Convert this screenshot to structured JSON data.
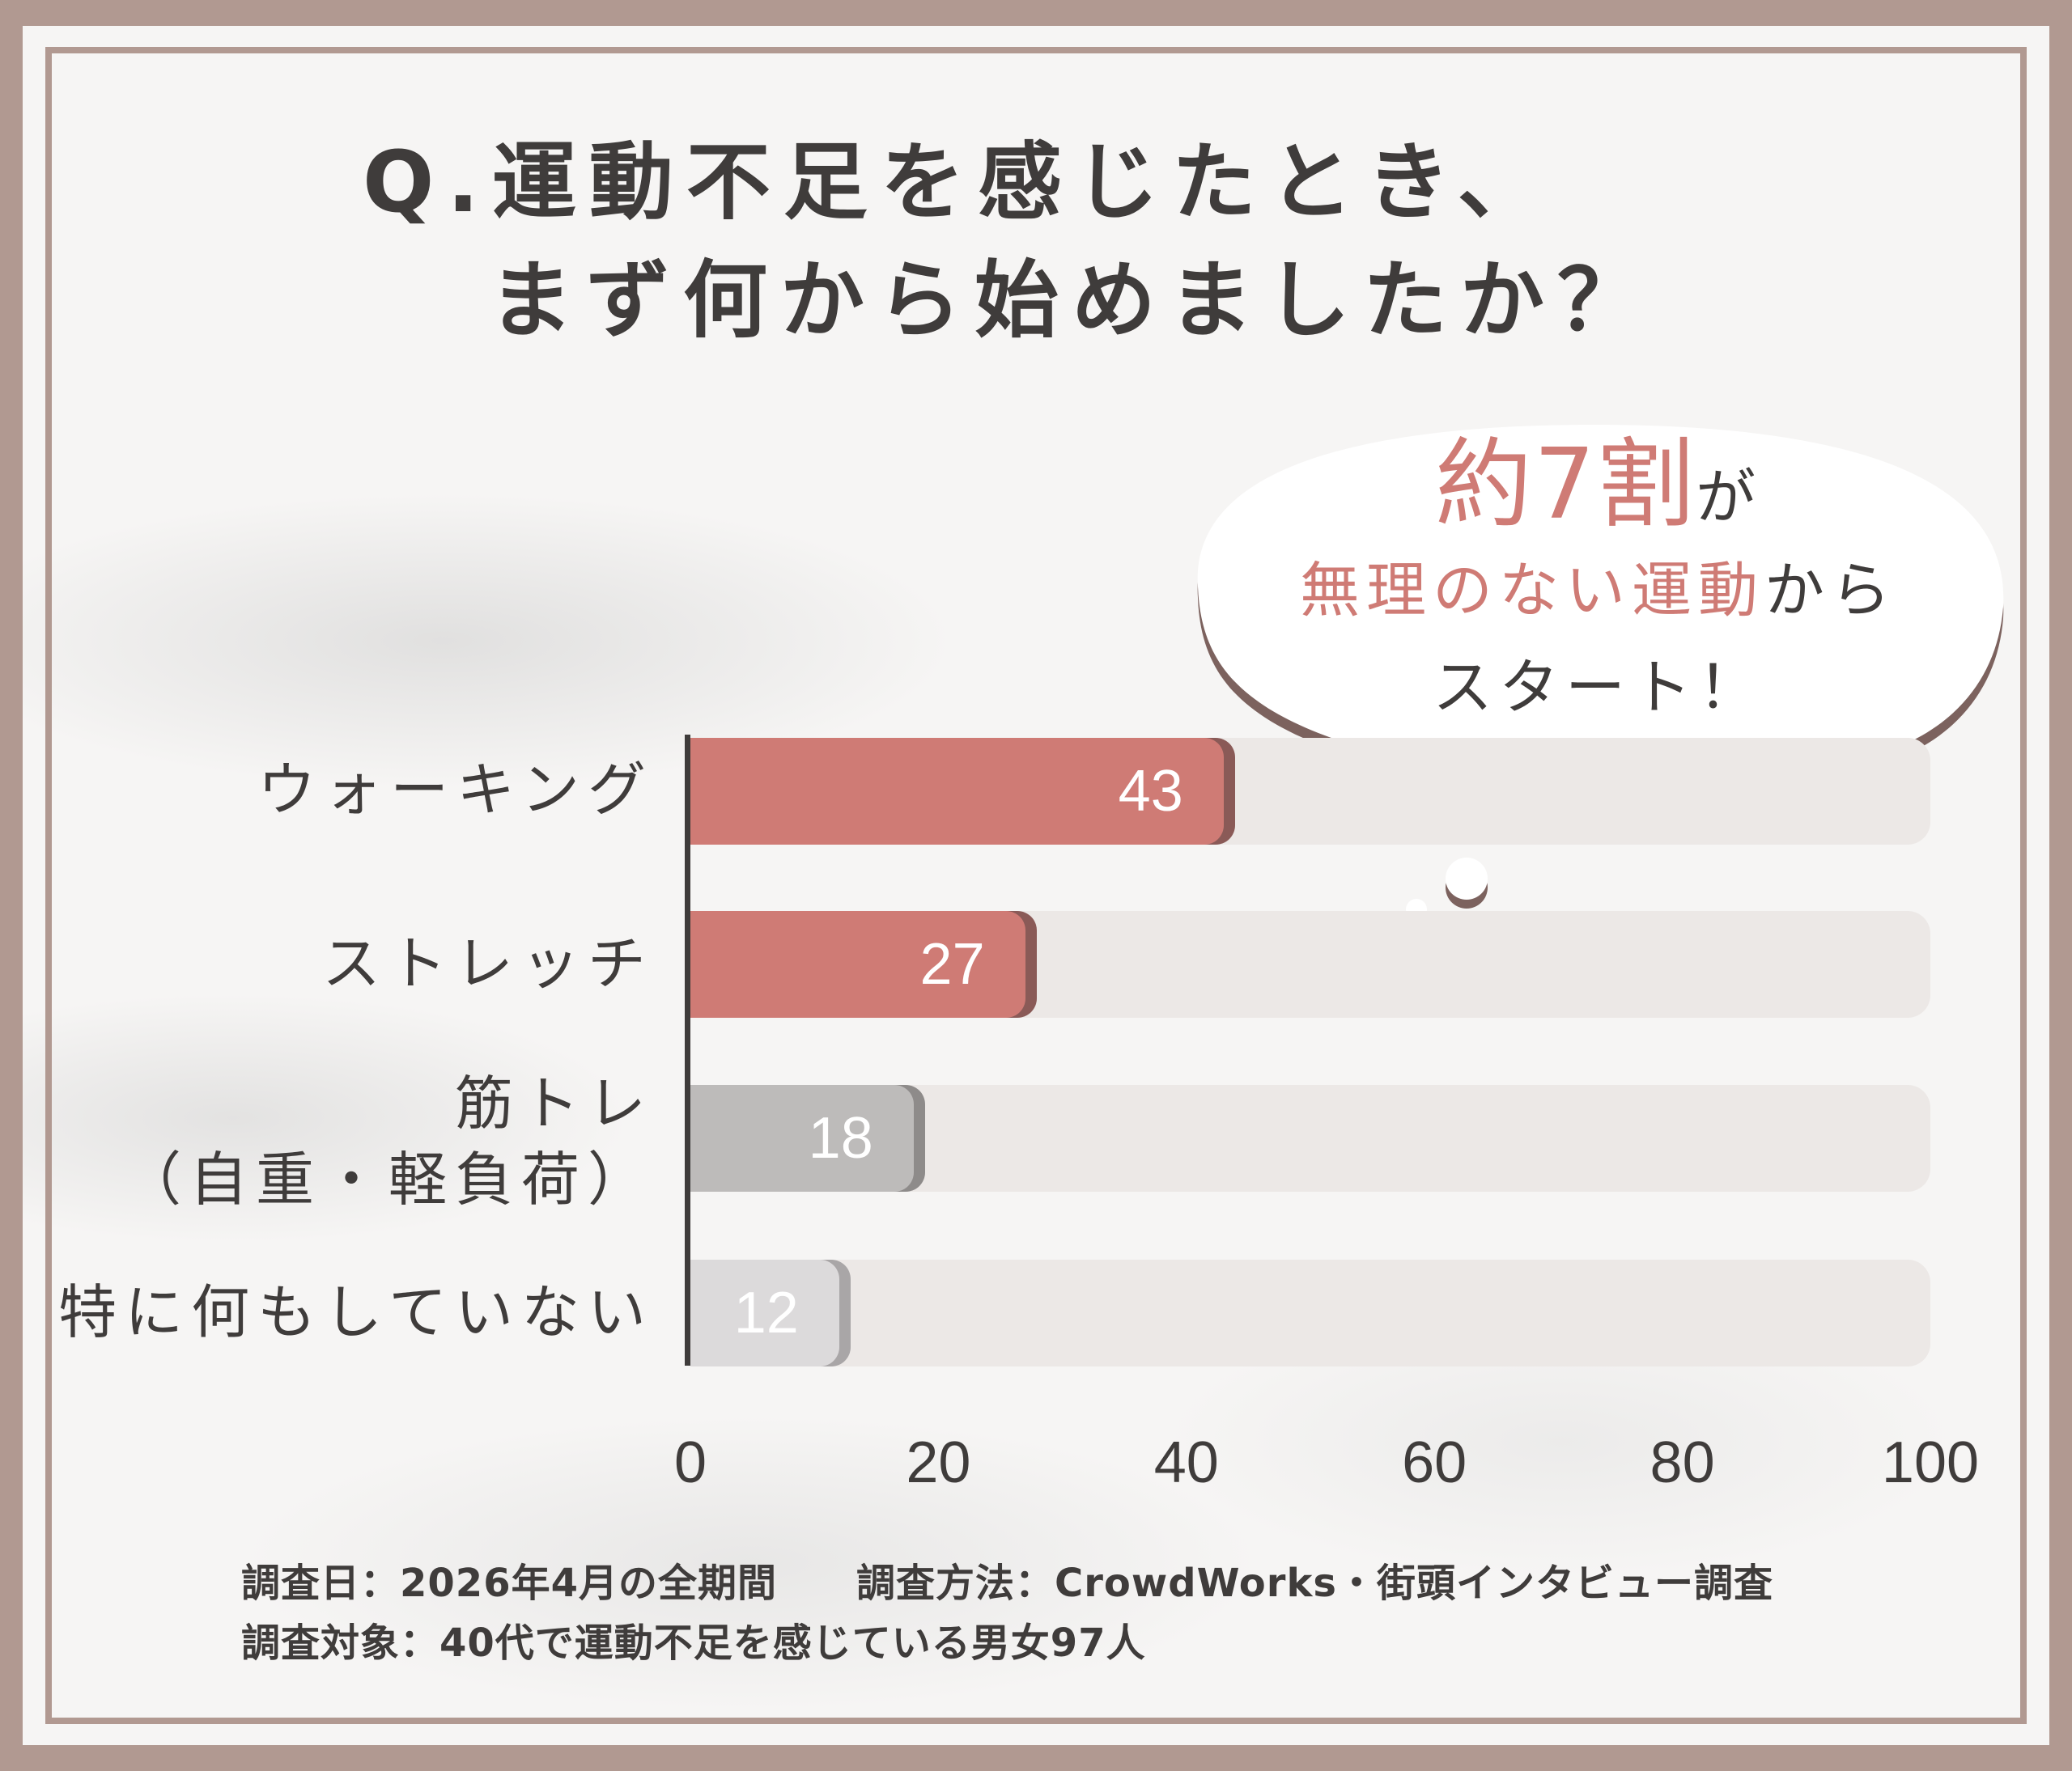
{
  "title": {
    "line1": "Q.運動不足を感じたとき、",
    "line2": "まず何から始めましたか？"
  },
  "callout": {
    "big": "約7割",
    "ga": "が",
    "line2_accent": "無理のない運動",
    "line2_rest": "から",
    "line3": "スタート！"
  },
  "chart_data": {
    "type": "bar",
    "orientation": "horizontal",
    "categories": [
      "ウォーキング",
      "ストレッチ",
      "筋トレ（自重・軽負荷）",
      "特に何もしていない"
    ],
    "category_lines": [
      [
        "ウォーキング"
      ],
      [
        "ストレッチ"
      ],
      [
        "筋トレ",
        "（自重・軽負荷）"
      ],
      [
        "特に何もしていない"
      ]
    ],
    "values": [
      43,
      27,
      18,
      12
    ],
    "value_labels": [
      "43",
      "27",
      "18",
      "12"
    ],
    "bar_colors": [
      "#cf7b75",
      "#cf7b75",
      "#bdbbba",
      "#dcdadb"
    ],
    "bar_shadow_colors": [
      "#8a5a57",
      "#8a5a57",
      "#8e8b8a",
      "#a9a6a7"
    ],
    "xlim": [
      0,
      100
    ],
    "x_ticks": [
      0,
      20,
      40,
      60,
      80,
      100
    ],
    "x_tick_labels": [
      "0",
      "20",
      "40",
      "60",
      "80",
      "100"
    ],
    "title": "",
    "xlabel": "",
    "ylabel": "",
    "grid": false,
    "legend": "none"
  },
  "footer": {
    "line1": "調査日：2026年4月の全期間　　調査方法：CrowdWorks・街頭インタビュー調査",
    "line2": "調査対象：40代で運動不足を感じている男女97人"
  },
  "colors": {
    "border": "#b19991",
    "accent": "#cf7b75",
    "text": "#3f3c3b",
    "track": "#ece8e6"
  }
}
